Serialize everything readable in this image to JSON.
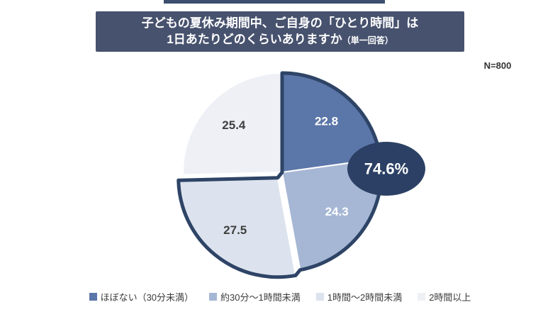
{
  "title": {
    "line1": "子どもの夏休み期間中、ご自身の「ひとり時間」は",
    "line2_main": "1日あたりどのくらいありますか",
    "line2_sub": "（単一回答）",
    "bg_color": "#47526E",
    "text_color": "#FFFFFF"
  },
  "sample_label": "N=800",
  "chart_data": {
    "type": "pie",
    "title": "子どもの夏休み期間中、ご自身の「ひとり時間」は1日あたりどのくらいありますか（単一回答）",
    "sample_size": "N=800",
    "unit": "%",
    "direction": "clockwise",
    "start_angle_deg": 0,
    "legend_position": "bottom",
    "segments": [
      {
        "label": "ほぼない（30分未満）",
        "value": 22.8,
        "color": "#5B76A9",
        "label_color": "#FFFFFF",
        "exploded": false
      },
      {
        "label": "約30分～1時間未満",
        "value": 24.3,
        "color": "#A6B7D5",
        "label_color": "#FFFFFF",
        "exploded": false
      },
      {
        "label": "1時間～2時間未満",
        "value": 27.5,
        "color": "#DCE3EE",
        "label_color": "#3F3F3F",
        "exploded": true
      },
      {
        "label": "2時間以上",
        "value": 25.4,
        "color": "#EEF0F6",
        "label_color": "#3F3F3F",
        "exploded": false
      }
    ],
    "separator_color": "#FFFFFF",
    "outline_color": "#2E4466",
    "highlight": {
      "text": "74.6%",
      "value": 74.6,
      "includes_segments": [
        0,
        1,
        2
      ],
      "color": "#2B4064",
      "text_color": "#FFFFFF"
    }
  }
}
